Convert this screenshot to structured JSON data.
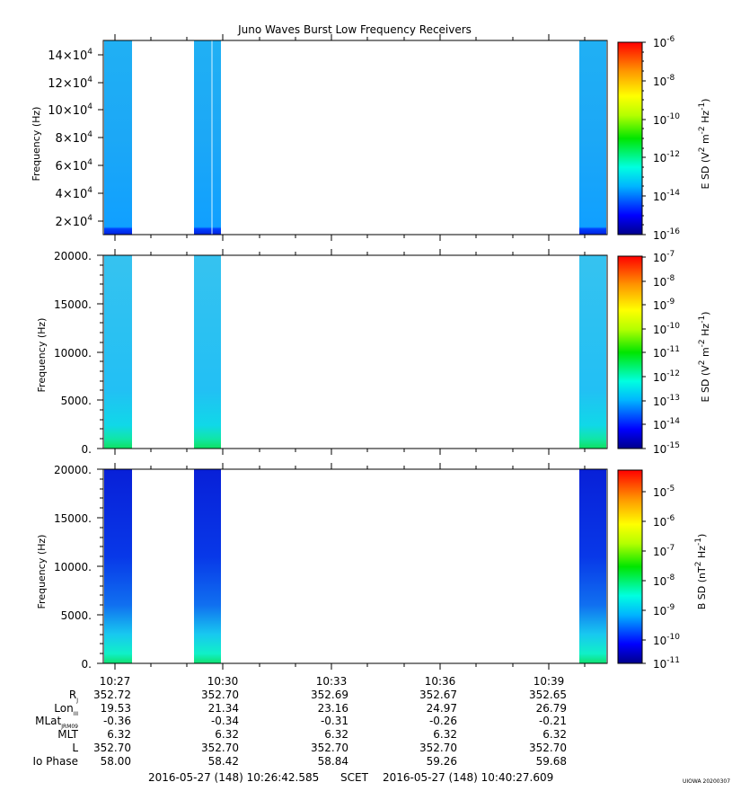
{
  "chart_data": {
    "type": "heatmap",
    "title": "Juno Waves Burst Low Frequency Receivers",
    "time_ticks": [
      "10:27",
      "10:30",
      "10:33",
      "10:36",
      "10:39"
    ],
    "time_range": [
      "10:26:42.585",
      "10:40:27.609"
    ],
    "data_segments": [
      [
        "10:26:42.585",
        "10:27:29"
      ],
      [
        "10:29:00",
        "10:29:45"
      ],
      [
        "10:39:50",
        "10:40:27.609"
      ]
    ],
    "panels": [
      {
        "ylabel": "Frequency (Hz)",
        "yticks": [
          "2×10^4",
          "4×10^4",
          "6×10^4",
          "8×10^4",
          "10×10^4",
          "12×10^4",
          "14×10^4"
        ],
        "yrange": [
          10000,
          150000
        ],
        "cbar_label": "E SD (V^2 m^-2 Hz^-1)",
        "cbar_ticks": [
          "10^-6",
          "10^-8",
          "10^-10",
          "10^-12",
          "10^-14",
          "10^-16"
        ],
        "cbar_range_exp": [
          -16,
          -6
        ],
        "dominant_level_exp": -14
      },
      {
        "ylabel": "Frequency (Hz)",
        "yticks": [
          "0.",
          "5000.",
          "10000.",
          "15000.",
          "20000."
        ],
        "yrange": [
          0,
          20000
        ],
        "cbar_label": "E SD (V^2 m^-2 Hz^-1)",
        "cbar_ticks": [
          "10^-7",
          "10^-8",
          "10^-9",
          "10^-10",
          "10^-11",
          "10^-12",
          "10^-13",
          "10^-14",
          "10^-15"
        ],
        "cbar_range_exp": [
          -15,
          -7
        ],
        "dominant_level_exp": -13
      },
      {
        "ylabel": "Frequency (Hz)",
        "yticks": [
          "0.",
          "5000.",
          "10000.",
          "15000.",
          "20000."
        ],
        "yrange": [
          0,
          20000
        ],
        "cbar_label": "B SD (nT^2 Hz^-1)",
        "cbar_ticks": [
          "10^-5",
          "10^-6",
          "10^-7",
          "10^-8",
          "10^-9",
          "10^-10",
          "10^-11"
        ],
        "cbar_range_exp": [
          -11,
          -4.5
        ],
        "dominant_level_exp": -10
      }
    ],
    "ephemeris": {
      "rows": [
        "R_J",
        "Lon_III",
        "MLat_JRM09",
        "MLT",
        "L",
        "Io Phase"
      ],
      "columns": [
        [
          "352.72",
          "19.53",
          "-0.36",
          "6.32",
          "352.70",
          "58.00"
        ],
        [
          "352.70",
          "21.34",
          "-0.34",
          "6.32",
          "352.70",
          "58.42"
        ],
        [
          "352.69",
          "23.16",
          "-0.31",
          "6.32",
          "352.70",
          "58.84"
        ],
        [
          "352.67",
          "24.97",
          "-0.26",
          "6.32",
          "352.70",
          "59.26"
        ],
        [
          "352.65",
          "26.79",
          "-0.21",
          "6.32",
          "352.70",
          "59.68"
        ]
      ]
    }
  },
  "footer": {
    "start": "2016-05-27 (148) 10:26:42.585",
    "scet": "SCET",
    "end": "2016-05-27 (148) 10:40:27.609",
    "stamp": "UIOWA 20200307"
  }
}
